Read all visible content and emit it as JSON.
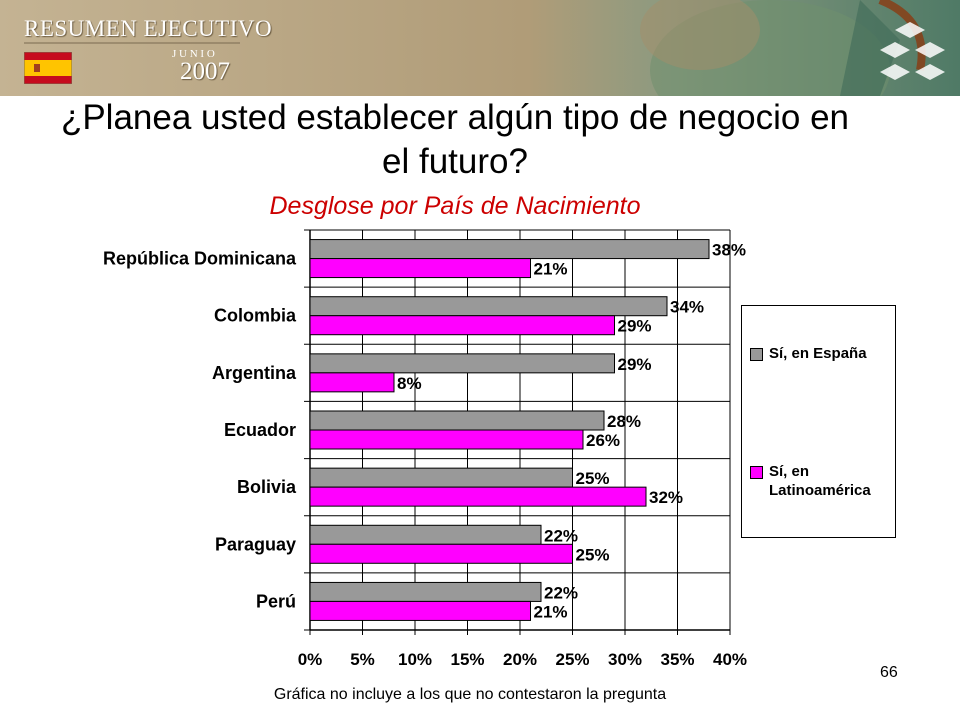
{
  "header": {
    "brand_title": "RESUMEN EJECUTIVO",
    "month": "J U N I O",
    "year": "2007",
    "flag_icon": "spain-flag-icon",
    "colors": {
      "banner_left": "#b7a785",
      "banner_right": "#5f8a72"
    }
  },
  "slide": {
    "title": "¿Planea usted establecer algún tipo de negocio en el futuro?",
    "subtitle": "Desglose por País de Nacimiento",
    "footnote": "Gráfica no incluye a los que no contestaron la pregunta",
    "page_number": "66"
  },
  "chart_data": {
    "type": "bar",
    "orientation": "horizontal",
    "categories": [
      "República Dominicana",
      "Colombia",
      "Argentina",
      "Ecuador",
      "Bolivia",
      "Paraguay",
      "Perú"
    ],
    "series": [
      {
        "name": "Sí, en España",
        "color": "#999999",
        "values": [
          38,
          34,
          29,
          28,
          25,
          22,
          22
        ],
        "labels": [
          "38%",
          "34%",
          "29%",
          "28%",
          "25%",
          "22%",
          "22%"
        ]
      },
      {
        "name": "Sí, en Latinoamérica",
        "color": "#ff00ff",
        "values": [
          21,
          29,
          8,
          26,
          32,
          25,
          21
        ],
        "labels": [
          "21%",
          "29%",
          "8%",
          "26%",
          "32%",
          "25%",
          "21%"
        ]
      }
    ],
    "xlim": [
      0,
      40
    ],
    "xticks": [
      "0%",
      "5%",
      "10%",
      "15%",
      "20%",
      "25%",
      "30%",
      "35%",
      "40%"
    ],
    "grid": true,
    "legend_position": "right"
  }
}
